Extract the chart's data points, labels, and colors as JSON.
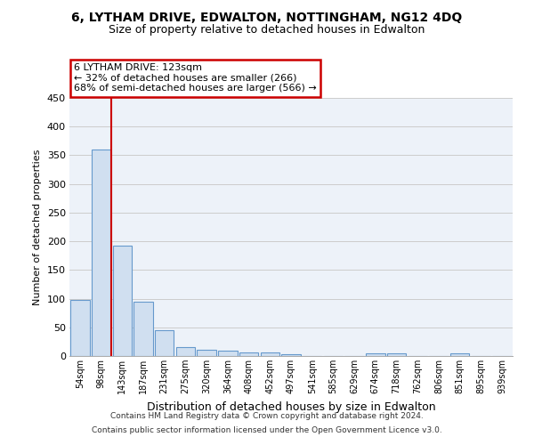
{
  "title1": "6, LYTHAM DRIVE, EDWALTON, NOTTINGHAM, NG12 4DQ",
  "title2": "Size of property relative to detached houses in Edwalton",
  "xlabel": "Distribution of detached houses by size in Edwalton",
  "ylabel": "Number of detached properties",
  "footer1": "Contains HM Land Registry data © Crown copyright and database right 2024.",
  "footer2": "Contains public sector information licensed under the Open Government Licence v3.0.",
  "categories": [
    "54sqm",
    "98sqm",
    "143sqm",
    "187sqm",
    "231sqm",
    "275sqm",
    "320sqm",
    "364sqm",
    "408sqm",
    "452sqm",
    "497sqm",
    "541sqm",
    "585sqm",
    "629sqm",
    "674sqm",
    "718sqm",
    "762sqm",
    "806sqm",
    "851sqm",
    "895sqm",
    "939sqm"
  ],
  "values": [
    97,
    360,
    193,
    95,
    45,
    16,
    11,
    10,
    6,
    6,
    3,
    0,
    0,
    0,
    5,
    5,
    0,
    0,
    4,
    0,
    0
  ],
  "bar_color": "#d0dff0",
  "bar_edgecolor": "#6699cc",
  "grid_color": "#cccccc",
  "bg_color": "#edf2f9",
  "annotation_line1": "6 LYTHAM DRIVE: 123sqm",
  "annotation_line2": "← 32% of detached houses are smaller (266)",
  "annotation_line3": "68% of semi-detached houses are larger (566) →",
  "annotation_box_color": "#ffffff",
  "annotation_border_color": "#cc0000",
  "vline_x": 1.5,
  "vline_color": "#cc0000",
  "ylim": [
    0,
    450
  ],
  "yticks": [
    0,
    50,
    100,
    150,
    200,
    250,
    300,
    350,
    400,
    450
  ]
}
